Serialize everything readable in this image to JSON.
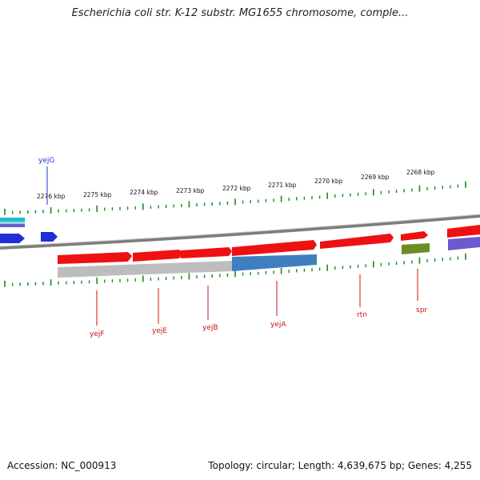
{
  "title": "Escherichia coli str. K-12 substr. MG1655 chromosome, comple...",
  "footer": {
    "accession": "Accession: NC_000913",
    "summary": "Topology: circular; Length: 4,639,675 bp; Genes: 4,255"
  },
  "colors": {
    "forward_gene": "#ee1111",
    "reverse_gene": "#1f2fd6",
    "backbone": "#7d7d7d",
    "tick": "#1a8c1a",
    "gene_label": "#cc1111",
    "blue_label": "#2233cc",
    "cds_grey": "#b8b8b8",
    "cds_blue": "#3f7fbf",
    "cds_green": "#6b8e23",
    "cds_purple": "#6a5acd",
    "cyan_track": "#26b7c8"
  },
  "ruler_ticks": [
    "2276 kbp",
    "2275 kbp",
    "2274 kbp",
    "2273 kbp",
    "2272 kbp",
    "2271 kbp",
    "2270 kbp",
    "2269 kbp",
    "2268 kbp"
  ],
  "genes": [
    {
      "name": "yejG",
      "strand": "reverse",
      "color": "blue"
    },
    {
      "name": "yejF",
      "strand": "forward"
    },
    {
      "name": "yejE",
      "strand": "forward"
    },
    {
      "name": "yejB",
      "strand": "forward"
    },
    {
      "name": "yejA",
      "strand": "forward"
    },
    {
      "name": "rtn",
      "strand": "forward"
    },
    {
      "name": "spr",
      "strand": "forward"
    }
  ]
}
